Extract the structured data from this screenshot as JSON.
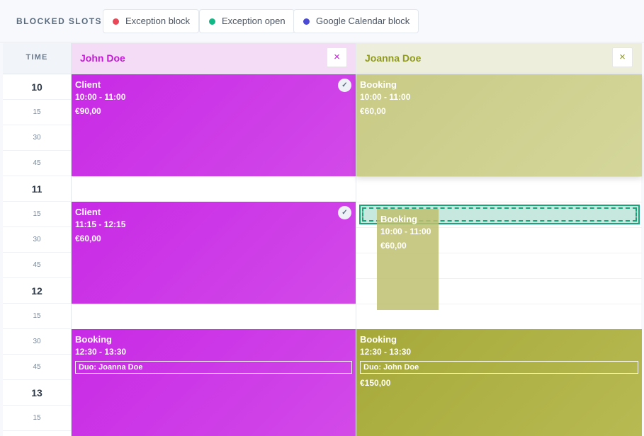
{
  "legend": {
    "title": "BLOCKED SLOTS",
    "items": [
      {
        "label": "Exception block",
        "color": "#e84857"
      },
      {
        "label": "Exception open",
        "color": "#12b886"
      },
      {
        "label": "Google Calendar block",
        "color": "#4a4ad6"
      }
    ]
  },
  "time_header": "TIME",
  "time_slots": [
    "10",
    "15",
    "30",
    "45",
    "11",
    "15",
    "30",
    "45",
    "12",
    "15",
    "30",
    "45",
    "13",
    "15"
  ],
  "columns": [
    {
      "name": "John Doe",
      "accent": "#c21bd4",
      "header_bg": "#f4dcf6",
      "close_icon": "×"
    },
    {
      "name": "Joanna Doe",
      "accent": "#8f9a1f",
      "header_bg": "#eeeedd",
      "close_icon": "×"
    }
  ],
  "events": {
    "john_1": {
      "title": "Client",
      "range": "10:00 - 11:00",
      "price": "€90,00",
      "confirmed_icon": "✓"
    },
    "john_2": {
      "title": "Client",
      "range": "11:15 - 12:15",
      "price": "€60,00",
      "confirmed_icon": "✓"
    },
    "john_3": {
      "title": "Booking",
      "range": "12:30 - 13:30",
      "duo": "Duo: Joanna Doe"
    },
    "joanna_1": {
      "title": "Booking",
      "range": "10:00 - 11:00",
      "price": "€60,00"
    },
    "joanna_3": {
      "title": "Booking",
      "range": "12:30 - 13:30",
      "duo": "Duo: John Doe",
      "price": "€150,00"
    },
    "drag": {
      "title": "Booking",
      "range": "10:00 - 11:00",
      "price": "€60,00"
    }
  }
}
